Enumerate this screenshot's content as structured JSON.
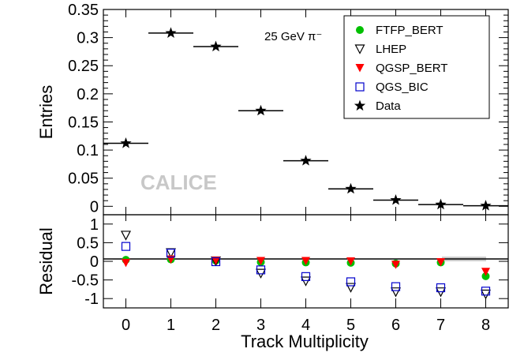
{
  "chart_data": [
    {
      "panel": "top",
      "type": "scatter",
      "xlabel": "",
      "ylabel": "Entries",
      "xlim": [
        -0.5,
        8.5
      ],
      "ylim": [
        -0.015,
        0.35
      ],
      "y_ticks": [
        0,
        0.05,
        0.1,
        0.15,
        0.2,
        0.25,
        0.3,
        0.35
      ],
      "y_tick_labels": [
        "0",
        "0.05",
        "0.1",
        "0.15",
        "0.2",
        "0.25",
        "0.3",
        "0.35"
      ],
      "annotation": "25 GeV π⁻",
      "watermark": "CALICE",
      "series": [
        {
          "name": "Data",
          "marker": "star",
          "color": "#000000",
          "x": [
            0,
            1,
            2,
            3,
            4,
            5,
            6,
            7,
            8
          ],
          "values": [
            0.112,
            0.308,
            0.284,
            0.17,
            0.081,
            0.031,
            0.011,
            0.003,
            0.001
          ]
        }
      ],
      "legend": {
        "position": "top-right",
        "entries": [
          {
            "label": "FTFP_BERT",
            "marker": "circle",
            "color": "#00c000"
          },
          {
            "label": "LHEP",
            "marker": "triangle-down-open",
            "color": "#000000"
          },
          {
            "label": "QGSP_BERT",
            "marker": "triangle-down",
            "color": "#ff0000"
          },
          {
            "label": "QGS_BIC",
            "marker": "square-open",
            "color": "#0000cc"
          },
          {
            "label": "Data",
            "marker": "star",
            "color": "#000000"
          }
        ]
      }
    },
    {
      "panel": "bottom",
      "type": "scatter",
      "xlabel": "Track Multiplicity",
      "ylabel": "Residual",
      "xlim": [
        -0.5,
        8.5
      ],
      "ylim": [
        -1.25,
        1.25
      ],
      "x_ticks": [
        0,
        1,
        2,
        3,
        4,
        5,
        6,
        7,
        8
      ],
      "x_tick_labels": [
        "0",
        "1",
        "2",
        "3",
        "4",
        "5",
        "6",
        "7",
        "8"
      ],
      "y_ticks": [
        -1,
        -0.5,
        0,
        0.5,
        1
      ],
      "y_tick_labels": [
        "-1",
        "-0.5",
        "0",
        "0.5",
        "1"
      ],
      "series": [
        {
          "name": "FTFP_BERT",
          "marker": "circle",
          "color": "#00c000",
          "x": [
            0,
            1,
            2,
            3,
            4,
            5,
            6,
            7,
            8
          ],
          "values": [
            0.04,
            0.05,
            0.02,
            -0.02,
            -0.03,
            -0.04,
            -0.06,
            -0.03,
            -0.4
          ]
        },
        {
          "name": "LHEP",
          "marker": "triangle-down-open",
          "color": "#000000",
          "x": [
            0,
            1,
            2,
            3,
            4,
            5,
            6,
            7,
            8
          ],
          "values": [
            0.7,
            0.23,
            0.01,
            -0.32,
            -0.53,
            -0.7,
            -0.82,
            -0.82,
            -0.88
          ]
        },
        {
          "name": "QGSP_BERT",
          "marker": "triangle-down",
          "color": "#ff0000",
          "x": [
            0,
            1,
            2,
            3,
            4,
            5,
            6,
            7,
            8
          ],
          "values": [
            -0.04,
            0.05,
            0.02,
            0.01,
            0.01,
            0.0,
            -0.09,
            -0.02,
            -0.28
          ]
        },
        {
          "name": "QGS_BIC",
          "marker": "square-open",
          "color": "#0000cc",
          "x": [
            0,
            1,
            2,
            3,
            4,
            5,
            6,
            7,
            8
          ],
          "values": [
            0.4,
            0.22,
            -0.01,
            -0.23,
            -0.41,
            -0.55,
            -0.68,
            -0.71,
            -0.8
          ]
        }
      ]
    }
  ]
}
